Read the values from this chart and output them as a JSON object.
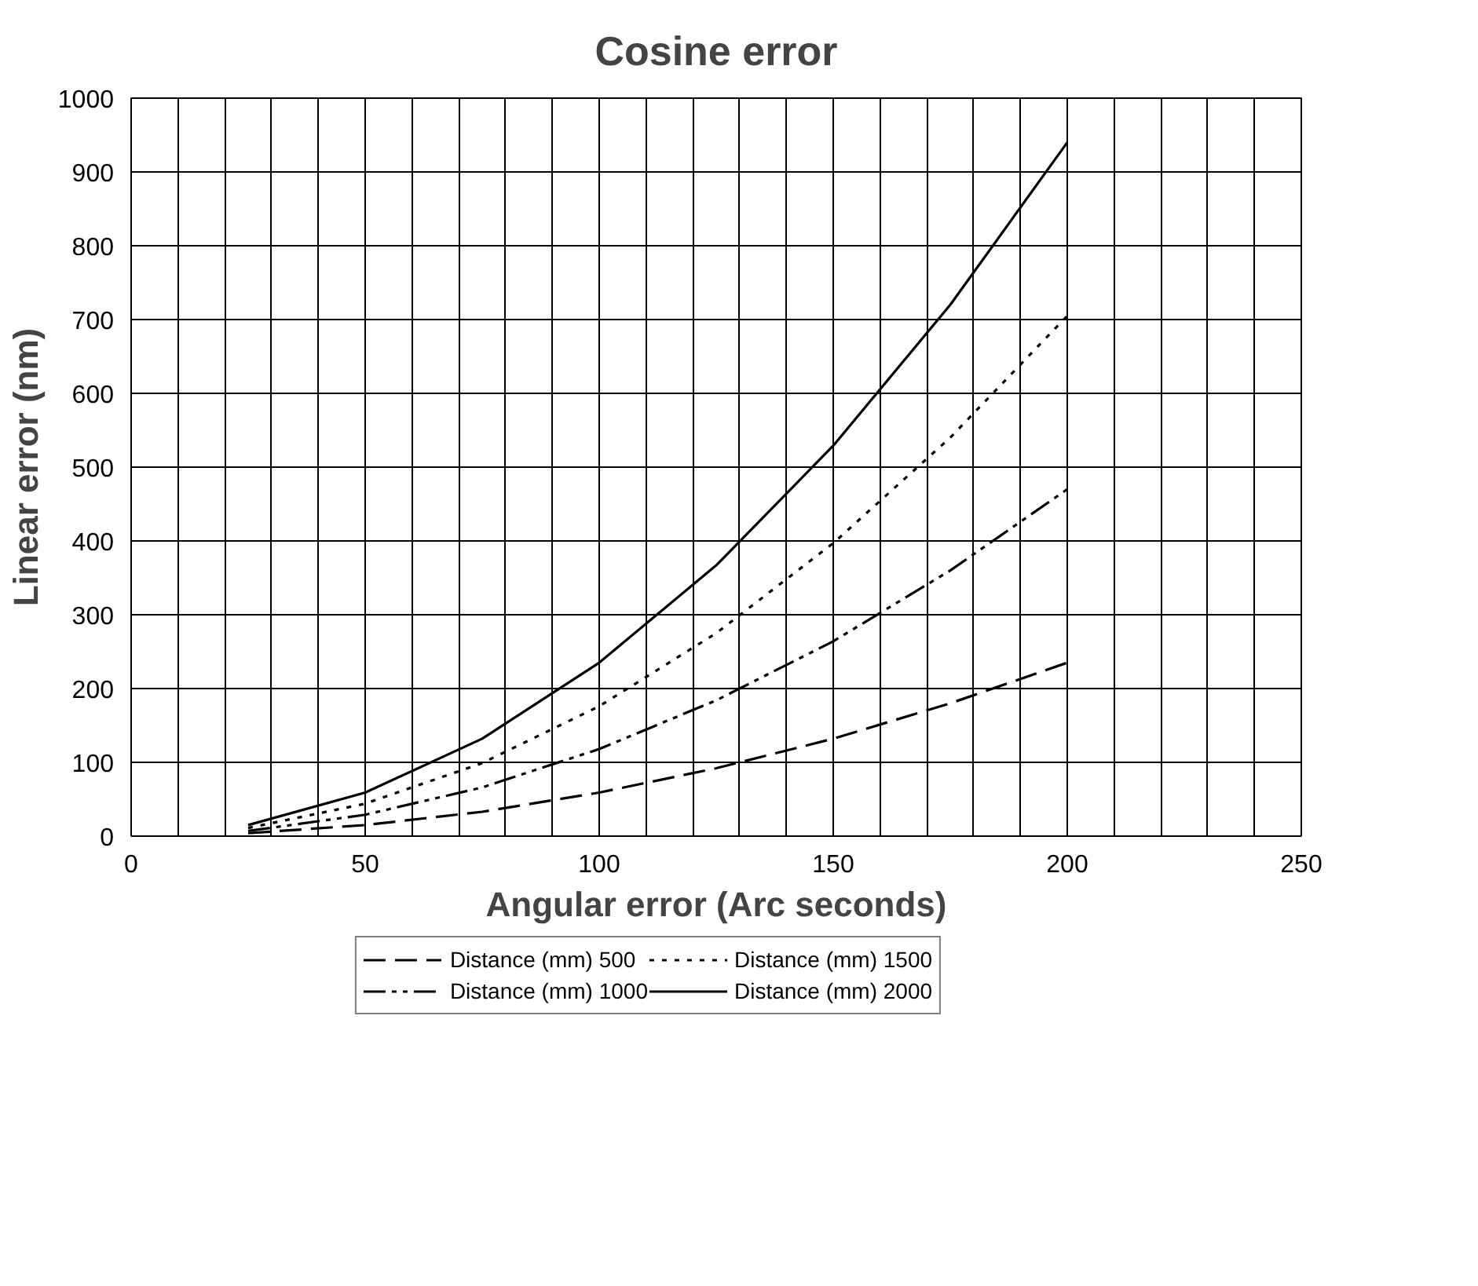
{
  "chart_data": {
    "type": "line",
    "title": "Cosine error",
    "xlabel": "Angular error (Arc seconds)",
    "ylabel": "Linear error (nm)",
    "x": [
      25,
      50,
      75,
      100,
      125,
      150,
      175,
      200
    ],
    "series": [
      {
        "name": "Distance (mm) 500",
        "color": "#000000",
        "line_style": "dashed",
        "values": [
          4,
          15,
          33,
          59,
          92,
          132,
          180,
          235
        ]
      },
      {
        "name": "Distance (mm) 1000",
        "color": "#000000",
        "line_style": "dashdot",
        "values": [
          7,
          29,
          66,
          118,
          184,
          264,
          360,
          470
        ]
      },
      {
        "name": "Distance (mm) 1500",
        "color": "#000000",
        "line_style": "dotted",
        "values": [
          11,
          44,
          99,
          176,
          275,
          397,
          540,
          705
        ]
      },
      {
        "name": "Distance (mm) 2000",
        "color": "#000000",
        "line_style": "solid",
        "values": [
          15,
          59,
          132,
          235,
          367,
          529,
          720,
          940
        ]
      }
    ],
    "xlim": [
      0,
      250
    ],
    "xticks": [
      0,
      {
        "value": 10,
        "label": null
      },
      {
        "value": 20,
        "label": null
      },
      {
        "value": 30,
        "label": null
      },
      {
        "value": 40,
        "label": null
      },
      50,
      {
        "value": 60,
        "label": null
      },
      {
        "value": 70,
        "label": null
      },
      {
        "value": 80,
        "label": null
      },
      {
        "value": 90,
        "label": null
      },
      100,
      {
        "value": 110,
        "label": null
      },
      {
        "value": 120,
        "label": null
      },
      {
        "value": 130,
        "label": null
      },
      {
        "value": 140,
        "label": null
      },
      150,
      {
        "value": 160,
        "label": null
      },
      {
        "value": 170,
        "label": null
      },
      {
        "value": 180,
        "label": null
      },
      {
        "value": 190,
        "label": null
      },
      200,
      {
        "value": 210,
        "label": null
      },
      {
        "value": 220,
        "label": null
      },
      {
        "value": 230,
        "label": null
      },
      {
        "value": 240,
        "label": null
      },
      250
    ],
    "ylim": [
      0,
      1000
    ],
    "yticks": [
      0,
      100,
      200,
      300,
      400,
      500,
      600,
      700,
      800,
      900,
      1000
    ],
    "grid": true,
    "legend": "bottom",
    "marker": "none"
  }
}
